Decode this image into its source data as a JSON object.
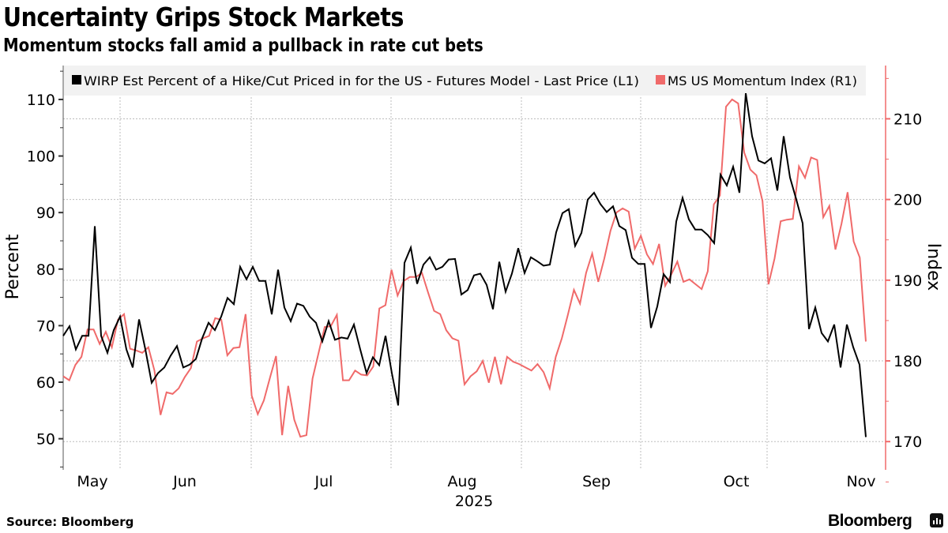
{
  "header": {
    "title": "Uncertainty Grips Stock Markets",
    "subtitle": "Momentum stocks fall amid a pullback in rate cut bets"
  },
  "footer": {
    "source": "Source: Bloomberg",
    "brand": "Bloomberg",
    "brand_icon": "bloomberg-chart-icon"
  },
  "colors": {
    "wirp": "#000000",
    "momentum": "#f06a6a",
    "right_axis": "#f06a6a",
    "legend_bg": "#f2f2f2",
    "grid": "#bdbdbd"
  },
  "chart_data": {
    "type": "line",
    "title": "Uncertainty Grips Stock Markets",
    "subtitle": "Momentum stocks fall amid a pullback in rate cut bets",
    "xlabel": "2025",
    "x_ticks": [
      "May",
      "Jun",
      "Jul",
      "Aug",
      "Sep",
      "Oct",
      "Nov"
    ],
    "x_range": [
      "2025-05-01",
      "2025-11-04"
    ],
    "grid": true,
    "legend_position": "top",
    "left_axis": {
      "label": "Percent",
      "ticks": [
        50,
        60,
        70,
        80,
        90,
        100,
        110
      ],
      "range": [
        44.5,
        116
      ]
    },
    "right_axis": {
      "label": "Index",
      "ticks": [
        170,
        180,
        190,
        200,
        210
      ],
      "range": [
        166.5,
        216.6
      ]
    },
    "series": [
      {
        "name": "WIRP Est Percent of a Hike/Cut Priced in for the US - Futures Model - Last Price (L1)",
        "axis": "left",
        "values": [
          68.2,
          69.9,
          65.8,
          68.2,
          68.2,
          87.6,
          68.2,
          65.2,
          69.2,
          71.6,
          65.8,
          62.6,
          71.1,
          65.8,
          59.9,
          61.6,
          62.6,
          64.7,
          66.4,
          62.6,
          63.1,
          64.1,
          67.8,
          70.5,
          69.2,
          71.6,
          74.9,
          73.8,
          80.4,
          78.2,
          80.4,
          77.9,
          77.9,
          72.0,
          79.9,
          73.2,
          70.8,
          73.9,
          73.5,
          71.6,
          70.5,
          67.2,
          70.8,
          67.5,
          67.9,
          67.7,
          70.2,
          65.8,
          61.6,
          64.4,
          63.0,
          68.2,
          61.6,
          55.9,
          81.1,
          83.8,
          77.4,
          80.8,
          82.1,
          79.9,
          80.4,
          81.7,
          81.8,
          75.5,
          76.3,
          78.9,
          79.2,
          77.2,
          72.9,
          81.3,
          76.0,
          79.2,
          83.7,
          79.3,
          82.1,
          81.4,
          80.6,
          80.8,
          86.5,
          89.9,
          90.6,
          84.1,
          86.4,
          92.3,
          93.5,
          91.5,
          90.1,
          91.1,
          87.6,
          86.9,
          82.0,
          80.9,
          80.9,
          69.6,
          73.4,
          79.1,
          77.7,
          88.4,
          92.6,
          88.8,
          87.0,
          87.0,
          86.0,
          84.6,
          96.7,
          94.8,
          98.1,
          93.5,
          111.1,
          103.5,
          99.2,
          98.7,
          99.6,
          93.9,
          103.5,
          96.2,
          92.3,
          88.1,
          69.4,
          73.2,
          68.7,
          67.2,
          70.2,
          62.6,
          70.2,
          66.2,
          63.1,
          50.3
        ]
      },
      {
        "name": "MS US Momentum Index (R1)",
        "axis": "right",
        "values": [
          178.1,
          177.6,
          179.5,
          180.5,
          183.9,
          183.9,
          182.1,
          183.6,
          181.7,
          185.1,
          185.8,
          181.5,
          181.3,
          181.0,
          181.7,
          178.8,
          173.3,
          176.1,
          175.9,
          176.6,
          178.0,
          179.1,
          182.4,
          182.8,
          183.1,
          185.3,
          185.1,
          180.7,
          181.6,
          181.7,
          185.8,
          175.7,
          173.4,
          175.1,
          177.9,
          180.6,
          170.8,
          176.9,
          172.7,
          170.6,
          170.8,
          177.8,
          181.0,
          184.2,
          184.3,
          185.7,
          177.6,
          177.6,
          178.8,
          178.3,
          178.2,
          179.3,
          186.5,
          186.9,
          191.3,
          188.1,
          189.9,
          190.4,
          190.4,
          190.9,
          188.5,
          186.2,
          185.8,
          183.8,
          182.8,
          182.5,
          177.1,
          178.1,
          178.7,
          180.0,
          177.3,
          180.5,
          177.1,
          180.5,
          179.9,
          179.6,
          179.2,
          178.8,
          179.6,
          178.6,
          176.6,
          180.5,
          182.8,
          185.7,
          188.8,
          187.1,
          190.9,
          193.3,
          189.8,
          192.7,
          196.1,
          198.4,
          198.9,
          198.5,
          193.9,
          195.5,
          193.2,
          192.0,
          194.5,
          189.3,
          190.7,
          192.3,
          189.8,
          190.1,
          189.5,
          188.9,
          191.1,
          199.4,
          200.5,
          211.5,
          212.4,
          211.9,
          205.8,
          203.7,
          203.0,
          199.8,
          189.5,
          192.7,
          197.3,
          197.5,
          197.6,
          204.1,
          202.7,
          205.2,
          204.9,
          197.8,
          199.2,
          193.8,
          197.0,
          200.9,
          194.8,
          192.8,
          182.4
        ]
      }
    ]
  }
}
